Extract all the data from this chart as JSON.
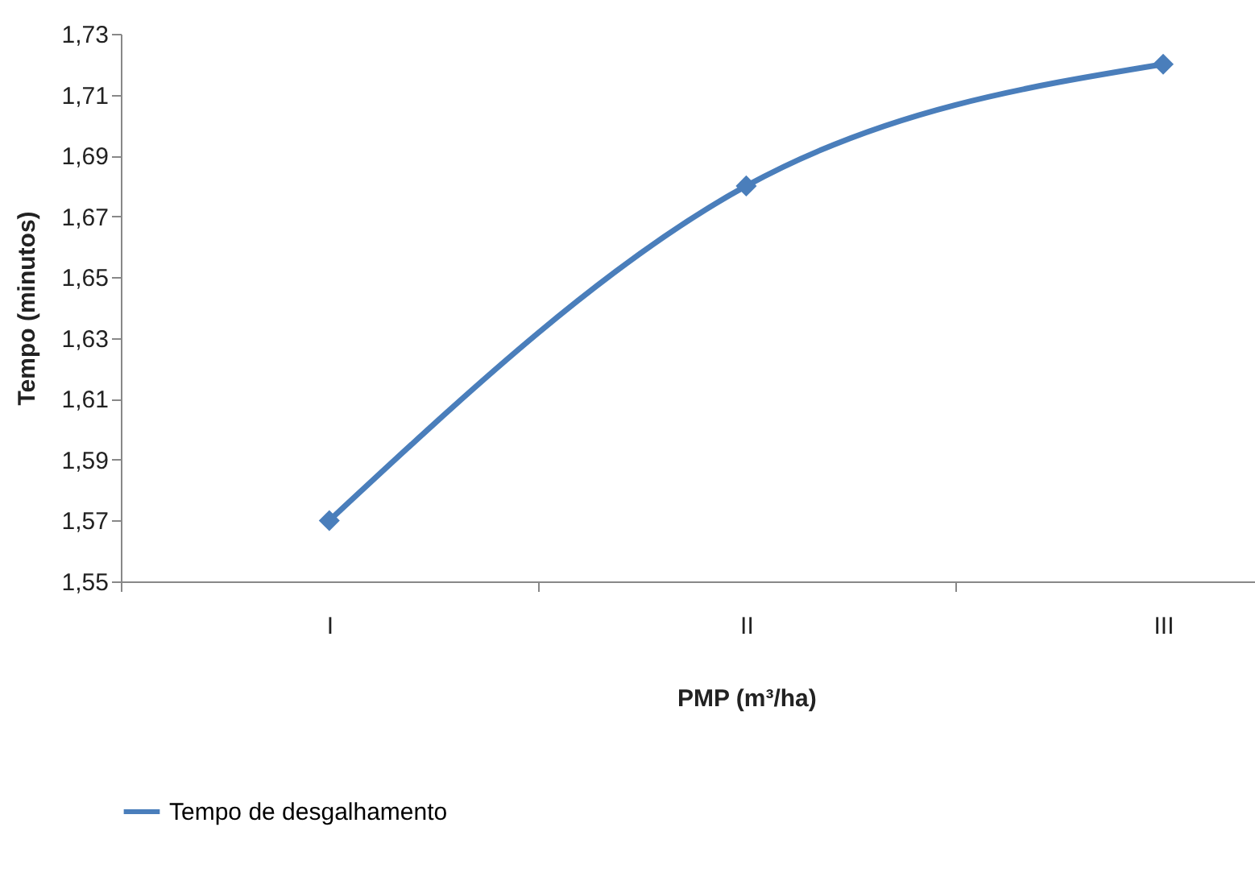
{
  "chart_data": {
    "type": "line",
    "xlabel": "PMP  (m³/ha)",
    "ylabel": "Tempo (minutos)",
    "categories": [
      "I",
      "II",
      "III"
    ],
    "series": [
      {
        "name": "Tempo de desgalhamento",
        "color": "#4a7ebb",
        "values": [
          1.57,
          1.68,
          1.72
        ]
      }
    ],
    "ylim": [
      1.55,
      1.73
    ],
    "yticks": [
      {
        "value": 1.55,
        "label": "1,55"
      },
      {
        "value": 1.57,
        "label": "1,57"
      },
      {
        "value": 1.59,
        "label": "1,59"
      },
      {
        "value": 1.61,
        "label": "1,61"
      },
      {
        "value": 1.63,
        "label": "1,63"
      },
      {
        "value": 1.65,
        "label": "1,65"
      },
      {
        "value": 1.67,
        "label": "1,67"
      },
      {
        "value": 1.69,
        "label": "1,69"
      },
      {
        "value": 1.71,
        "label": "1,71"
      },
      {
        "value": 1.73,
        "label": "1,73"
      }
    ],
    "grid": false,
    "legend": "bottom",
    "marker": "diamond",
    "line_style": "solid"
  }
}
